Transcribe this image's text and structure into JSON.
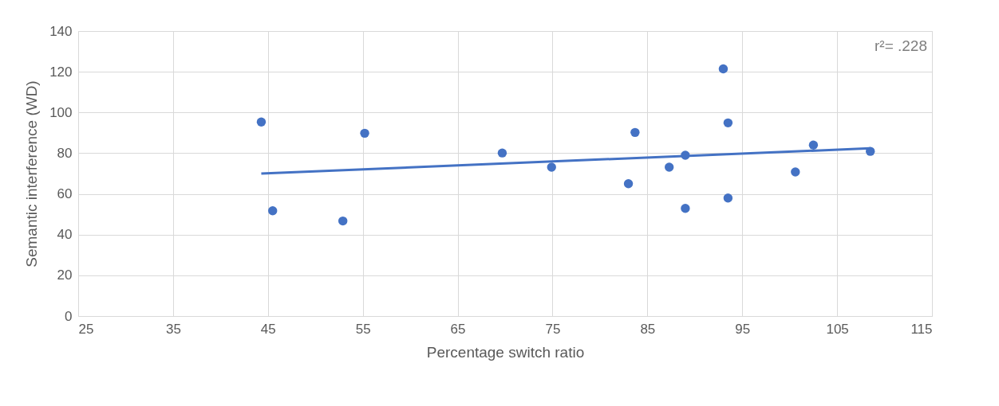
{
  "chart_data": {
    "type": "scatter",
    "xlabel": "Percentage switch ratio",
    "ylabel": "Semantic interference (WD)",
    "annotations": [
      "r²= .228"
    ],
    "xlim": [
      25,
      115
    ],
    "xticks": [
      25,
      35,
      45,
      55,
      65,
      75,
      85,
      95,
      105,
      115
    ],
    "ylim": [
      0,
      140
    ],
    "yticks": [
      0,
      20,
      40,
      60,
      80,
      100,
      120,
      140
    ],
    "grid": true,
    "series": [
      {
        "color": "#4472c4",
        "marker": "circle",
        "x": [
          44.3,
          45.5,
          52.9,
          55.2,
          69.7,
          74.9,
          83.0,
          83.7,
          87.3,
          89.0,
          89.0,
          93.0,
          93.5,
          93.5,
          100.6,
          102.5,
          108.5
        ],
        "values": [
          95.3,
          51.7,
          46.7,
          89.8,
          80.1,
          73.1,
          65.0,
          90.2,
          73.1,
          79.0,
          52.9,
          121.4,
          94.9,
          58.0,
          70.8,
          84.0,
          80.9
        ]
      },
      {
        "type": "line",
        "color": "#4472c4",
        "x": [
          44.3,
          108.5
        ],
        "values": [
          70.0,
          82.4
        ],
        "line_style": "solid",
        "marker": "none"
      }
    ]
  }
}
